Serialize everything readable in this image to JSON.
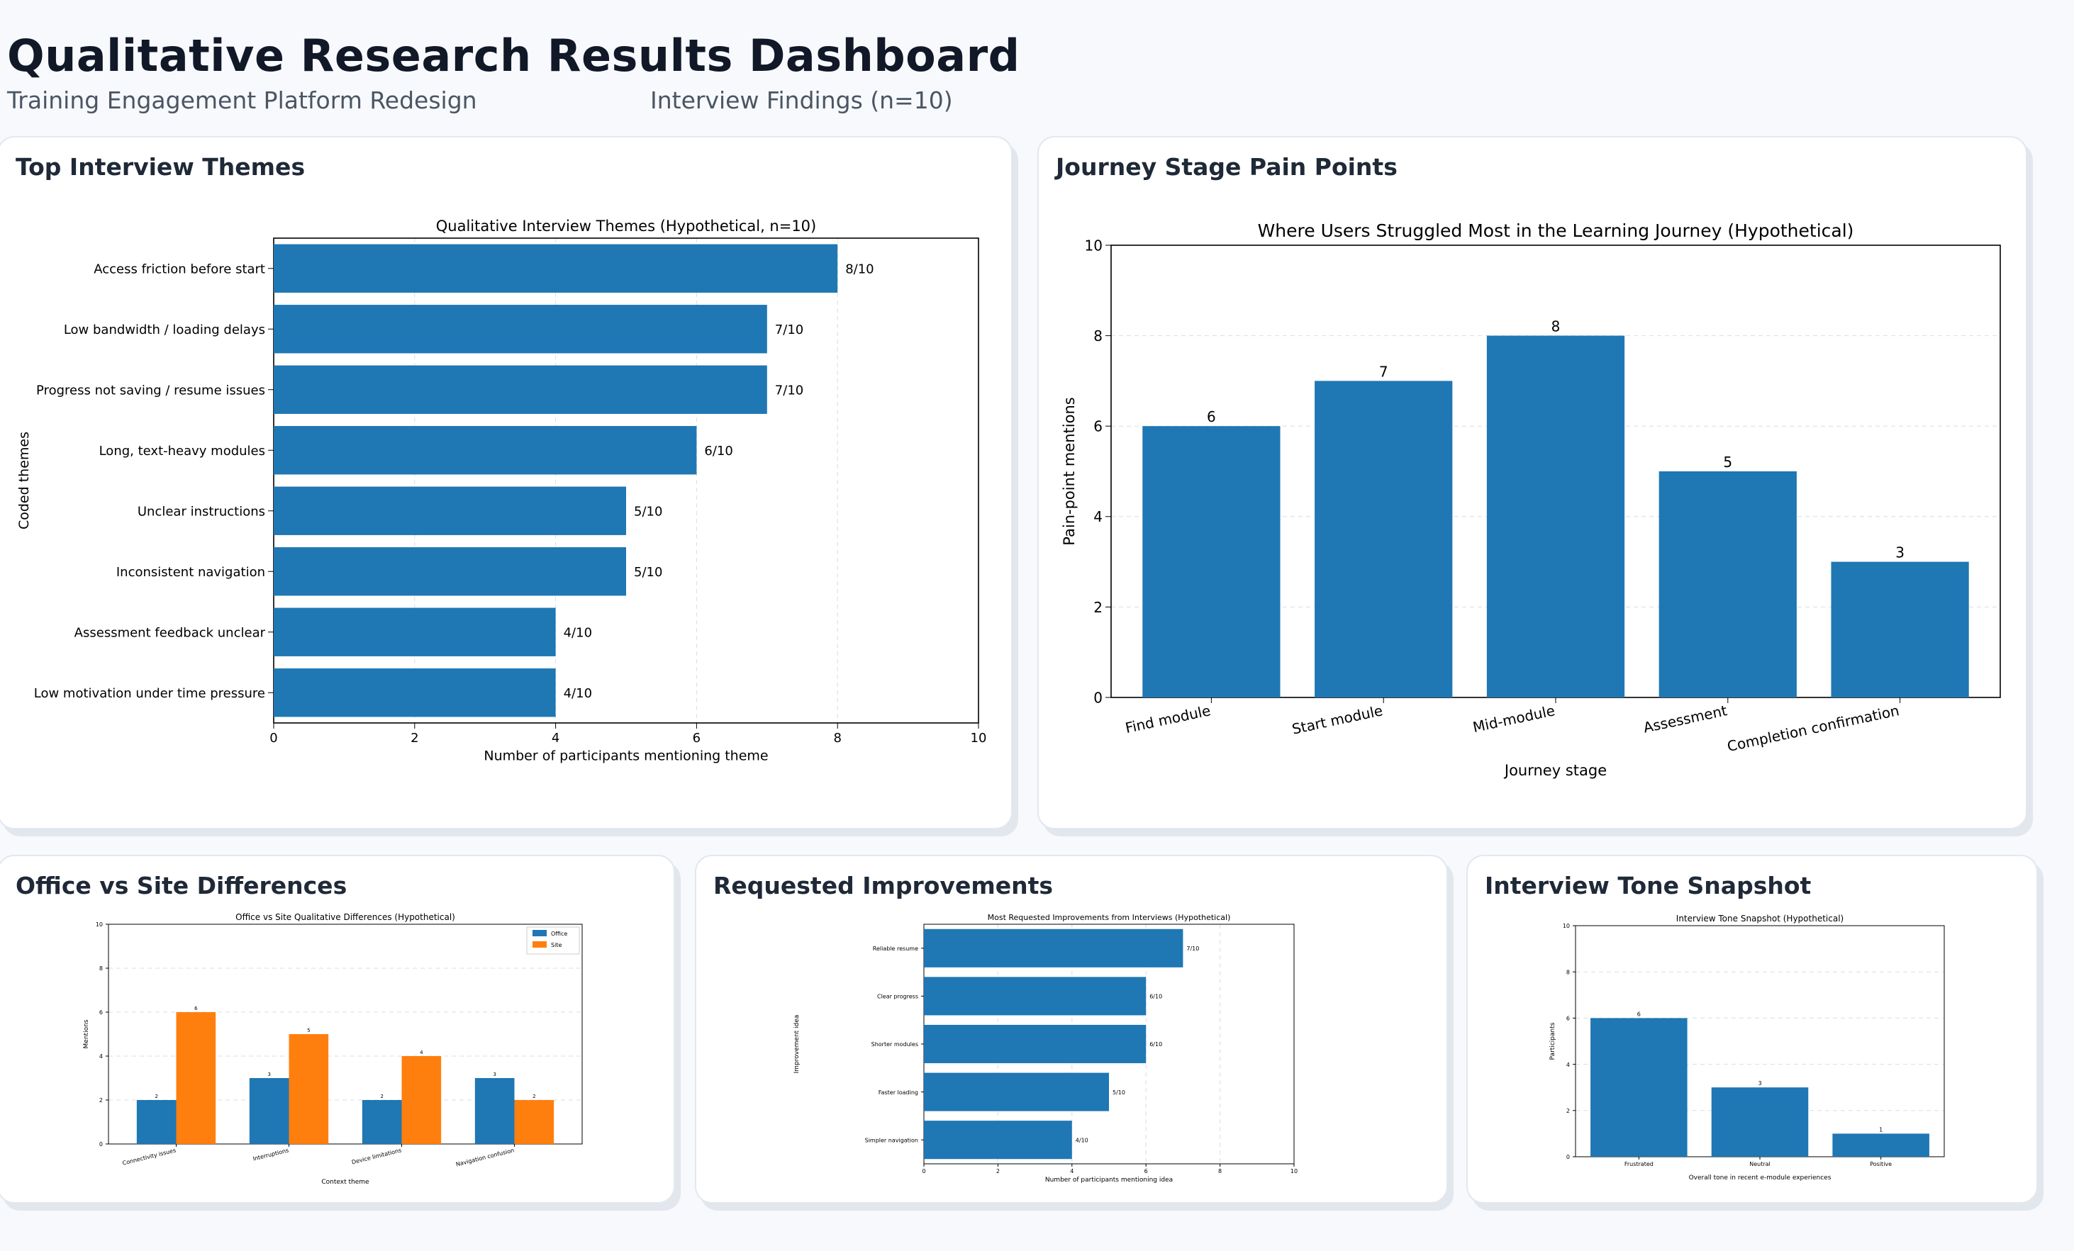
{
  "header": {
    "title": "Qualitative Research Results Dashboard",
    "subtitle_left": "Training Engagement Platform Redesign",
    "subtitle_right": "Interview Findings (n=10)"
  },
  "colors": {
    "blue": "#1f77b4",
    "orange": "#ff7f0e",
    "grid": "#d9dde3"
  },
  "cards": {
    "themes": "Top Interview Themes",
    "journey": "Journey Stage Pain Points",
    "office": "Office vs Site Differences",
    "improvements": "Requested Improvements",
    "tone": "Interview Tone Snapshot"
  },
  "chart_data": [
    {
      "id": "themes",
      "type": "bar",
      "orientation": "horizontal",
      "title": "Qualitative Interview Themes (Hypothetical, n=10)",
      "xlabel": "Number of participants mentioning theme",
      "ylabel": "Coded themes",
      "xlim": [
        0,
        10
      ],
      "ticks": [
        "0",
        "2",
        "4",
        "6",
        "8",
        "10"
      ],
      "categories": [
        "Access friction before start",
        "Low bandwidth / loading delays",
        "Progress not saving / resume issues",
        "Long, text-heavy modules",
        "Unclear instructions",
        "Inconsistent navigation",
        "Assessment feedback unclear",
        "Low motivation under time pressure"
      ],
      "values": [
        8,
        7,
        7,
        6,
        5,
        5,
        4,
        4
      ],
      "labels": [
        "8/10",
        "7/10",
        "7/10",
        "6/10",
        "5/10",
        "5/10",
        "4/10",
        "4/10"
      ]
    },
    {
      "id": "journey",
      "type": "bar",
      "orientation": "vertical",
      "title": "Where Users Struggled Most in the Learning Journey (Hypothetical)",
      "xlabel": "Journey stage",
      "ylabel": "Pain-point mentions",
      "ylim": [
        0,
        10
      ],
      "ticks": [
        "0",
        "2",
        "4",
        "6",
        "8",
        "10"
      ],
      "categories": [
        "Find module",
        "Start module",
        "Mid-module",
        "Assessment",
        "Completion confirmation"
      ],
      "values": [
        6,
        7,
        8,
        5,
        3
      ],
      "labels": [
        "6",
        "7",
        "8",
        "5",
        "3"
      ]
    },
    {
      "id": "office",
      "type": "bar",
      "orientation": "vertical",
      "title": "Office vs Site Qualitative Differences (Hypothetical)",
      "xlabel": "Context theme",
      "ylabel": "Mentions",
      "ylim": [
        0,
        10
      ],
      "ticks": [
        "0",
        "2",
        "4",
        "6",
        "8",
        "10"
      ],
      "categories": [
        "Connectivity issues",
        "Interruptions",
        "Device limitations",
        "Navigation confusion"
      ],
      "series": [
        {
          "name": "Office",
          "values": [
            2,
            3,
            2,
            3
          ],
          "labels": [
            "2",
            "3",
            "2",
            "3"
          ]
        },
        {
          "name": "Site",
          "values": [
            6,
            5,
            4,
            2
          ],
          "labels": [
            "6",
            "5",
            "4",
            "2"
          ]
        }
      ],
      "legend": "top-right"
    },
    {
      "id": "improvements",
      "type": "bar",
      "orientation": "horizontal",
      "title": "Most Requested Improvements from Interviews (Hypothetical)",
      "xlabel": "Number of participants mentioning idea",
      "ylabel": "Improvement idea",
      "xlim": [
        0,
        10
      ],
      "ticks": [
        "0",
        "2",
        "4",
        "6",
        "8",
        "10"
      ],
      "categories": [
        "Reliable resume",
        "Clear progress",
        "Shorter modules",
        "Faster loading",
        "Simpler navigation"
      ],
      "values": [
        7,
        6,
        6,
        5,
        4
      ],
      "labels": [
        "7/10",
        "6/10",
        "6/10",
        "5/10",
        "4/10"
      ]
    },
    {
      "id": "tone",
      "type": "bar",
      "orientation": "vertical",
      "title": "Interview Tone Snapshot (Hypothetical)",
      "xlabel": "Overall tone in recent e-module experiences",
      "ylabel": "Participants",
      "ylim": [
        0,
        10
      ],
      "ticks": [
        "0",
        "2",
        "4",
        "6",
        "8",
        "10"
      ],
      "categories": [
        "Frustrated",
        "Neutral",
        "Positive"
      ],
      "values": [
        6,
        3,
        1
      ],
      "labels": [
        "6",
        "3",
        "1"
      ]
    }
  ]
}
